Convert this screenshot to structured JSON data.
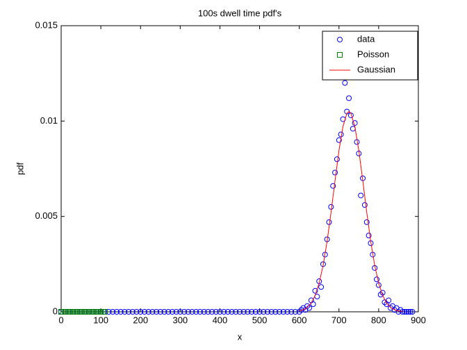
{
  "chart_data": {
    "type": "scatter-line",
    "title": "100s dwell time pdf's",
    "x_label": "x",
    "y_label": "pdf",
    "xlim": [
      0,
      900
    ],
    "xticks": [
      0,
      100,
      200,
      300,
      400,
      500,
      600,
      700,
      800,
      900
    ],
    "ylim": [
      0,
      0.015
    ],
    "yticks": [
      0,
      0.005,
      0.01,
      0.015
    ],
    "legend_position": "northeast",
    "series": [
      {
        "name": "data",
        "marker": "circle",
        "color": "#0000ff",
        "x": [
          0,
          10,
          20,
          30,
          40,
          50,
          60,
          70,
          80,
          90,
          100,
          110,
          120,
          130,
          140,
          150,
          160,
          170,
          180,
          190,
          200,
          210,
          220,
          230,
          240,
          250,
          260,
          270,
          280,
          290,
          300,
          310,
          320,
          330,
          340,
          350,
          360,
          370,
          380,
          390,
          400,
          410,
          420,
          430,
          440,
          450,
          460,
          470,
          480,
          490,
          500,
          510,
          520,
          530,
          540,
          550,
          560,
          570,
          580,
          590,
          600,
          605,
          610,
          615,
          620,
          625,
          630,
          635,
          640,
          645,
          650,
          655,
          660,
          665,
          670,
          675,
          680,
          685,
          690,
          695,
          700,
          705,
          710,
          715,
          720,
          725,
          730,
          735,
          740,
          745,
          750,
          755,
          760,
          765,
          770,
          775,
          780,
          785,
          790,
          795,
          800,
          805,
          810,
          815,
          820,
          825,
          830,
          835,
          840,
          845,
          850,
          855,
          860,
          865,
          870,
          875,
          880,
          885
        ],
        "values": [
          0,
          0,
          0,
          0,
          0,
          0,
          0,
          0,
          0,
          0,
          0,
          0,
          0,
          0,
          0,
          0,
          0,
          0,
          0,
          0,
          0,
          0,
          0,
          0,
          0,
          0,
          0,
          0,
          0,
          0,
          0,
          0,
          0,
          0,
          0,
          0,
          0,
          0,
          0,
          0,
          0,
          0,
          0,
          0,
          0,
          0,
          0,
          0,
          0,
          0,
          0,
          0,
          0,
          0,
          0,
          0,
          0,
          0,
          0,
          0,
          0,
          0.0001,
          0.0002,
          0.0001,
          0.0003,
          0.0002,
          0.0006,
          0.0004,
          0.0011,
          0.0008,
          0.0016,
          0.0013,
          0.0025,
          0.003,
          0.0038,
          0.0047,
          0.0055,
          0.0066,
          0.0073,
          0.008,
          0.009,
          0.0093,
          0.0101,
          0.012,
          0.0105,
          0.0112,
          0.0103,
          0.0096,
          0.0099,
          0.0089,
          0.0083,
          0.0061,
          0.007,
          0.0056,
          0.0047,
          0.004,
          0.0036,
          0.003,
          0.0023,
          0.0017,
          0.0014,
          0.0009,
          0.001,
          0.0005,
          0.0004,
          0.0006,
          0.0002,
          0.0003,
          0.0001,
          0.0002,
          0,
          0.0001,
          0,
          0,
          0,
          0,
          0,
          0
        ]
      },
      {
        "name": "Poisson",
        "marker": "square",
        "color": "#008000",
        "x": [
          0,
          5,
          10,
          15,
          20,
          25,
          30,
          35,
          40,
          45,
          50,
          55,
          60,
          65,
          70,
          75,
          80,
          85,
          90,
          95,
          100,
          105,
          110
        ],
        "values": [
          0,
          0,
          0,
          0,
          0,
          0,
          0,
          0,
          0,
          0,
          0,
          0,
          0,
          0,
          0,
          0,
          0,
          0,
          0,
          0,
          0,
          0,
          0
        ]
      },
      {
        "name": "Gaussian",
        "marker": "line",
        "color": "#ff0000",
        "x": [
          600,
          610,
          620,
          630,
          640,
          650,
          660,
          670,
          680,
          690,
          700,
          710,
          720,
          725,
          730,
          740,
          750,
          760,
          770,
          780,
          790,
          800,
          810,
          820,
          830,
          840,
          850,
          860
        ],
        "values": [
          4.7e-05,
          0.000108,
          0.000231,
          0.000461,
          0.000862,
          0.0015,
          0.00243,
          0.00369,
          0.00521,
          0.00687,
          0.00846,
          0.00971,
          0.01041,
          0.0105,
          0.01041,
          0.00971,
          0.00846,
          0.00687,
          0.00521,
          0.00369,
          0.00243,
          0.0015,
          0.000862,
          0.000461,
          0.000231,
          0.000108,
          4.7e-05,
          2e-05
        ]
      }
    ]
  }
}
